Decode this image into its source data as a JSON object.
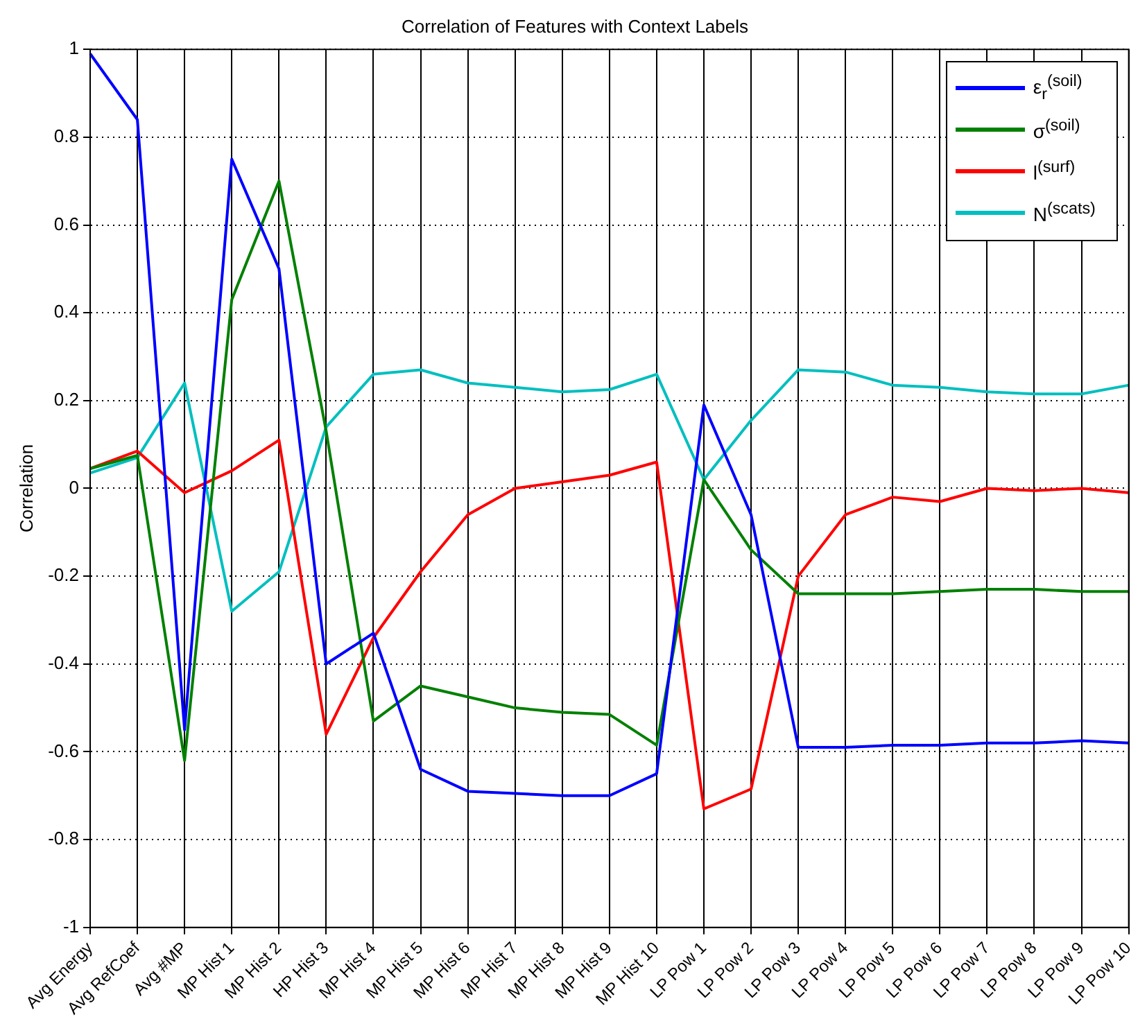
{
  "chart_data": {
    "type": "line",
    "title": "Correlation of Features with Context Labels",
    "ylabel": "Correlation",
    "categories": [
      "Avg Energy",
      "Avg RefCoef",
      "Avg #MP",
      "MP Hist 1",
      "MP Hist 2",
      "HP Hist 3",
      "MP Hist 4",
      "MP Hist 5",
      "MP Hist 6",
      "MP Hist 7",
      "MP Hist 8",
      "MP Hist 9",
      "MP Hist 10",
      "LP Pow 1",
      "LP Pow 2",
      "LP Pow 3",
      "LP Pow 4",
      "LP Pow 5",
      "LP Pow 6",
      "LP Pow 7",
      "LP Pow 8",
      "LP Pow 9",
      "LP Pow 10"
    ],
    "series": [
      {
        "name": "ε$_{r}$$^{(soil)}$",
        "color": "#0000ff",
        "values": [
          0.99,
          0.84,
          -0.55,
          0.75,
          0.5,
          -0.4,
          -0.33,
          -0.64,
          -0.69,
          -0.695,
          -0.7,
          -0.7,
          -0.65,
          0.19,
          -0.06,
          -0.59,
          -0.59,
          -0.585,
          -0.585,
          -0.58,
          -0.58,
          -0.575,
          -0.58
        ]
      },
      {
        "name": "σ$^{(soil)}$",
        "color": "#008000",
        "values": [
          0.045,
          0.075,
          -0.62,
          0.43,
          0.7,
          0.13,
          -0.53,
          -0.45,
          -0.475,
          -0.5,
          -0.51,
          -0.515,
          -0.585,
          0.02,
          -0.14,
          -0.24,
          -0.24,
          -0.24,
          -0.235,
          -0.23,
          -0.23,
          -0.235,
          -0.235
        ]
      },
      {
        "name": "l$^{(surf)}$",
        "color": "#ff0000",
        "values": [
          0.045,
          0.085,
          -0.01,
          0.04,
          0.11,
          -0.56,
          -0.34,
          -0.19,
          -0.06,
          0.0,
          0.015,
          0.03,
          0.06,
          -0.73,
          -0.685,
          -0.2,
          -0.06,
          -0.02,
          -0.03,
          0.0,
          -0.005,
          0.0,
          -0.01
        ]
      },
      {
        "name": "N$^{(scats)}$",
        "color": "#00bfbf",
        "values": [
          0.035,
          0.07,
          0.24,
          -0.28,
          -0.19,
          0.14,
          0.26,
          0.27,
          0.24,
          0.23,
          0.22,
          0.225,
          0.26,
          0.02,
          0.155,
          0.27,
          0.265,
          0.235,
          0.23,
          0.22,
          0.215,
          0.215,
          0.235
        ]
      }
    ],
    "ylim": [
      -1,
      1
    ],
    "yticks": [
      -1,
      -0.8,
      -0.6,
      -0.4,
      -0.2,
      0,
      0.2,
      0.4,
      0.6,
      0.8,
      1
    ],
    "grid": true,
    "legend": "top right",
    "marker": "none",
    "line_style": "solid"
  }
}
